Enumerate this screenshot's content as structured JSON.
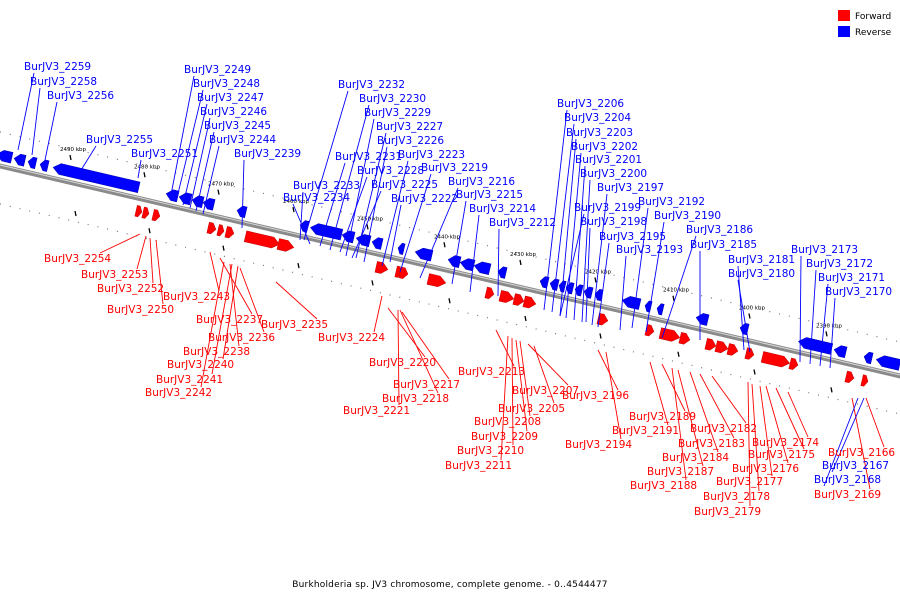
{
  "caption": "Burkholderia sp. JV3 chromosome, complete genome. - 0..4544477",
  "legend": [
    {
      "label": "Forward",
      "color": "#ff0000"
    },
    {
      "label": "Reverse",
      "color": "#0000ff"
    }
  ],
  "colors": {
    "forward": "#ff0000",
    "reverse": "#0000ff",
    "axis": "#999999"
  },
  "ticks": [
    "2490 kbp",
    "2480 kbp",
    "2470 kbp",
    "2460 kbp",
    "2450 kbp",
    "2440 kbp",
    "2430 kbp",
    "2420 kbp",
    "2410 kbp",
    "2400 kbp",
    "2390 kbp"
  ],
  "genes": [
    {
      "strand": "reverse",
      "label": "BurJV3_2259"
    },
    {
      "strand": "reverse",
      "label": "BurJV3_2258"
    },
    {
      "strand": "reverse",
      "label": "BurJV3_2256"
    },
    {
      "strand": "reverse",
      "label": "BurJV3_2255"
    },
    {
      "strand": "forward",
      "label": "BurJV3_2254"
    },
    {
      "strand": "forward",
      "label": "BurJV3_2253"
    },
    {
      "strand": "forward",
      "label": "BurJV3_2252"
    },
    {
      "strand": "reverse",
      "label": "BurJV3_2251"
    },
    {
      "strand": "forward",
      "label": "BurJV3_2250"
    },
    {
      "strand": "reverse",
      "label": "BurJV3_2249"
    },
    {
      "strand": "reverse",
      "label": "BurJV3_2248"
    },
    {
      "strand": "reverse",
      "label": "BurJV3_2247"
    },
    {
      "strand": "reverse",
      "label": "BurJV3_2246"
    },
    {
      "strand": "reverse",
      "label": "BurJV3_2245"
    },
    {
      "strand": "reverse",
      "label": "BurJV3_2244"
    },
    {
      "strand": "forward",
      "label": "BurJV3_2243"
    },
    {
      "strand": "forward",
      "label": "BurJV3_2242"
    },
    {
      "strand": "forward",
      "label": "BurJV3_2241"
    },
    {
      "strand": "forward",
      "label": "BurJV3_2240"
    },
    {
      "strand": "reverse",
      "label": "BurJV3_2239"
    },
    {
      "strand": "forward",
      "label": "BurJV3_2238"
    },
    {
      "strand": "forward",
      "label": "BurJV3_2237"
    },
    {
      "strand": "forward",
      "label": "BurJV3_2236"
    },
    {
      "strand": "forward",
      "label": "BurJV3_2235"
    },
    {
      "strand": "reverse",
      "label": "BurJV3_2234"
    },
    {
      "strand": "reverse",
      "label": "BurJV3_2233"
    },
    {
      "strand": "reverse",
      "label": "BurJV3_2232"
    },
    {
      "strand": "reverse",
      "label": "BurJV3_2231"
    },
    {
      "strand": "reverse",
      "label": "BurJV3_2230"
    },
    {
      "strand": "reverse",
      "label": "BurJV3_2229"
    },
    {
      "strand": "reverse",
      "label": "BurJV3_2228"
    },
    {
      "strand": "reverse",
      "label": "BurJV3_2227"
    },
    {
      "strand": "reverse",
      "label": "BurJV3_2226"
    },
    {
      "strand": "reverse",
      "label": "BurJV3_2225"
    },
    {
      "strand": "forward",
      "label": "BurJV3_2224"
    },
    {
      "strand": "reverse",
      "label": "BurJV3_2223"
    },
    {
      "strand": "reverse",
      "label": "BurJV3_2222"
    },
    {
      "strand": "forward",
      "label": "BurJV3_2221"
    },
    {
      "strand": "forward",
      "label": "BurJV3_2220"
    },
    {
      "strand": "reverse",
      "label": "BurJV3_2219"
    },
    {
      "strand": "forward",
      "label": "BurJV3_2218"
    },
    {
      "strand": "forward",
      "label": "BurJV3_2217"
    },
    {
      "strand": "reverse",
      "label": "BurJV3_2216"
    },
    {
      "strand": "reverse",
      "label": "BurJV3_2215"
    },
    {
      "strand": "reverse",
      "label": "BurJV3_2214"
    },
    {
      "strand": "forward",
      "label": "BurJV3_2213"
    },
    {
      "strand": "reverse",
      "label": "BurJV3_2212"
    },
    {
      "strand": "forward",
      "label": "BurJV3_2211"
    },
    {
      "strand": "forward",
      "label": "BurJV3_2210"
    },
    {
      "strand": "forward",
      "label": "BurJV3_2209"
    },
    {
      "strand": "forward",
      "label": "BurJV3_2208"
    },
    {
      "strand": "forward",
      "label": "BurJV3_2207"
    },
    {
      "strand": "reverse",
      "label": "BurJV3_2206"
    },
    {
      "strand": "forward",
      "label": "BurJV3_2205"
    },
    {
      "strand": "reverse",
      "label": "BurJV3_2204"
    },
    {
      "strand": "reverse",
      "label": "BurJV3_2203"
    },
    {
      "strand": "reverse",
      "label": "BurJV3_2202"
    },
    {
      "strand": "reverse",
      "label": "BurJV3_2201"
    },
    {
      "strand": "reverse",
      "label": "BurJV3_2200"
    },
    {
      "strand": "reverse",
      "label": "BurJV3_2199"
    },
    {
      "strand": "reverse",
      "label": "BurJV3_2198"
    },
    {
      "strand": "reverse",
      "label": "BurJV3_2197"
    },
    {
      "strand": "forward",
      "label": "BurJV3_2196"
    },
    {
      "strand": "reverse",
      "label": "BurJV3_2195"
    },
    {
      "strand": "forward",
      "label": "BurJV3_2194"
    },
    {
      "strand": "reverse",
      "label": "BurJV3_2193"
    },
    {
      "strand": "reverse",
      "label": "BurJV3_2192"
    },
    {
      "strand": "forward",
      "label": "BurJV3_2191"
    },
    {
      "strand": "reverse",
      "label": "BurJV3_2190"
    },
    {
      "strand": "forward",
      "label": "BurJV3_2189"
    },
    {
      "strand": "forward",
      "label": "BurJV3_2188"
    },
    {
      "strand": "forward",
      "label": "BurJV3_2187"
    },
    {
      "strand": "reverse",
      "label": "BurJV3_2186"
    },
    {
      "strand": "reverse",
      "label": "BurJV3_2185"
    },
    {
      "strand": "forward",
      "label": "BurJV3_2184"
    },
    {
      "strand": "forward",
      "label": "BurJV3_2183"
    },
    {
      "strand": "forward",
      "label": "BurJV3_2182"
    },
    {
      "strand": "reverse",
      "label": "BurJV3_2181"
    },
    {
      "strand": "reverse",
      "label": "BurJV3_2180"
    },
    {
      "strand": "forward",
      "label": "BurJV3_2179"
    },
    {
      "strand": "forward",
      "label": "BurJV3_2178"
    },
    {
      "strand": "forward",
      "label": "BurJV3_2177"
    },
    {
      "strand": "forward",
      "label": "BurJV3_2176"
    },
    {
      "strand": "forward",
      "label": "BurJV3_2175"
    },
    {
      "strand": "forward",
      "label": "BurJV3_2174"
    },
    {
      "strand": "reverse",
      "label": "BurJV3_2173"
    },
    {
      "strand": "reverse",
      "label": "BurJV3_2172"
    },
    {
      "strand": "reverse",
      "label": "BurJV3_2171"
    },
    {
      "strand": "reverse",
      "label": "BurJV3_2170"
    },
    {
      "strand": "forward",
      "label": "BurJV3_2169"
    },
    {
      "strand": "reverse",
      "label": "BurJV3_2168"
    },
    {
      "strand": "reverse",
      "label": "BurJV3_2167"
    },
    {
      "strand": "forward",
      "label": "BurJV3_2166"
    }
  ]
}
